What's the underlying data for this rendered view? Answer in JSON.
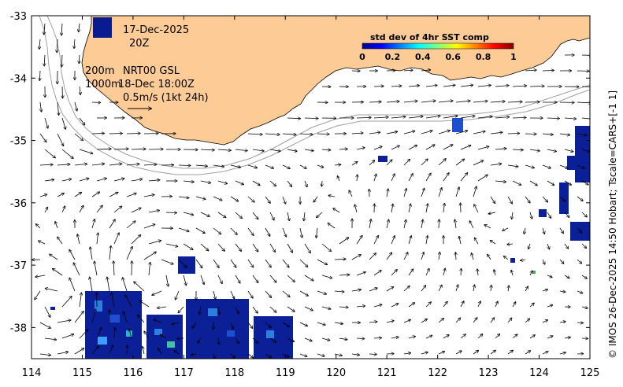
{
  "info": {
    "date": "17-Dec-2025",
    "hour": "20Z",
    "depth_200": "200m",
    "depth_1000": "1000m",
    "product": "NRT00 GSL",
    "valid_time": "18-Dec 18:00Z",
    "arrow_scale": "0.5m/s (1kt 24h)"
  },
  "colorbar": {
    "title": "std dev of 4hr SST comp",
    "ticks": [
      "0",
      "0.2",
      "0.4",
      "0.6",
      "0.8",
      "1"
    ],
    "colors": [
      "#00008f",
      "#0000ff",
      "#007fff",
      "#00ffff",
      "#7fff7f",
      "#ffff00",
      "#ff7f00",
      "#ff0000",
      "#7f0000"
    ]
  },
  "side_text": "© IMOS 26-Dec-2025 14:50 Hobart; Tscale=CARS+[-1 1]",
  "axes": {
    "x_ticks": [
      "114",
      "115",
      "116",
      "117",
      "118",
      "119",
      "120",
      "121",
      "122",
      "123",
      "124",
      "125"
    ],
    "y_ticks": [
      "-33",
      "-34",
      "-35",
      "-36",
      "-37",
      "-38"
    ],
    "xlim": [
      114,
      125
    ],
    "ylim": [
      -38.5,
      -33
    ]
  },
  "colors": {
    "land": "#fdcb96",
    "isobath": "#a0a0a0"
  }
}
